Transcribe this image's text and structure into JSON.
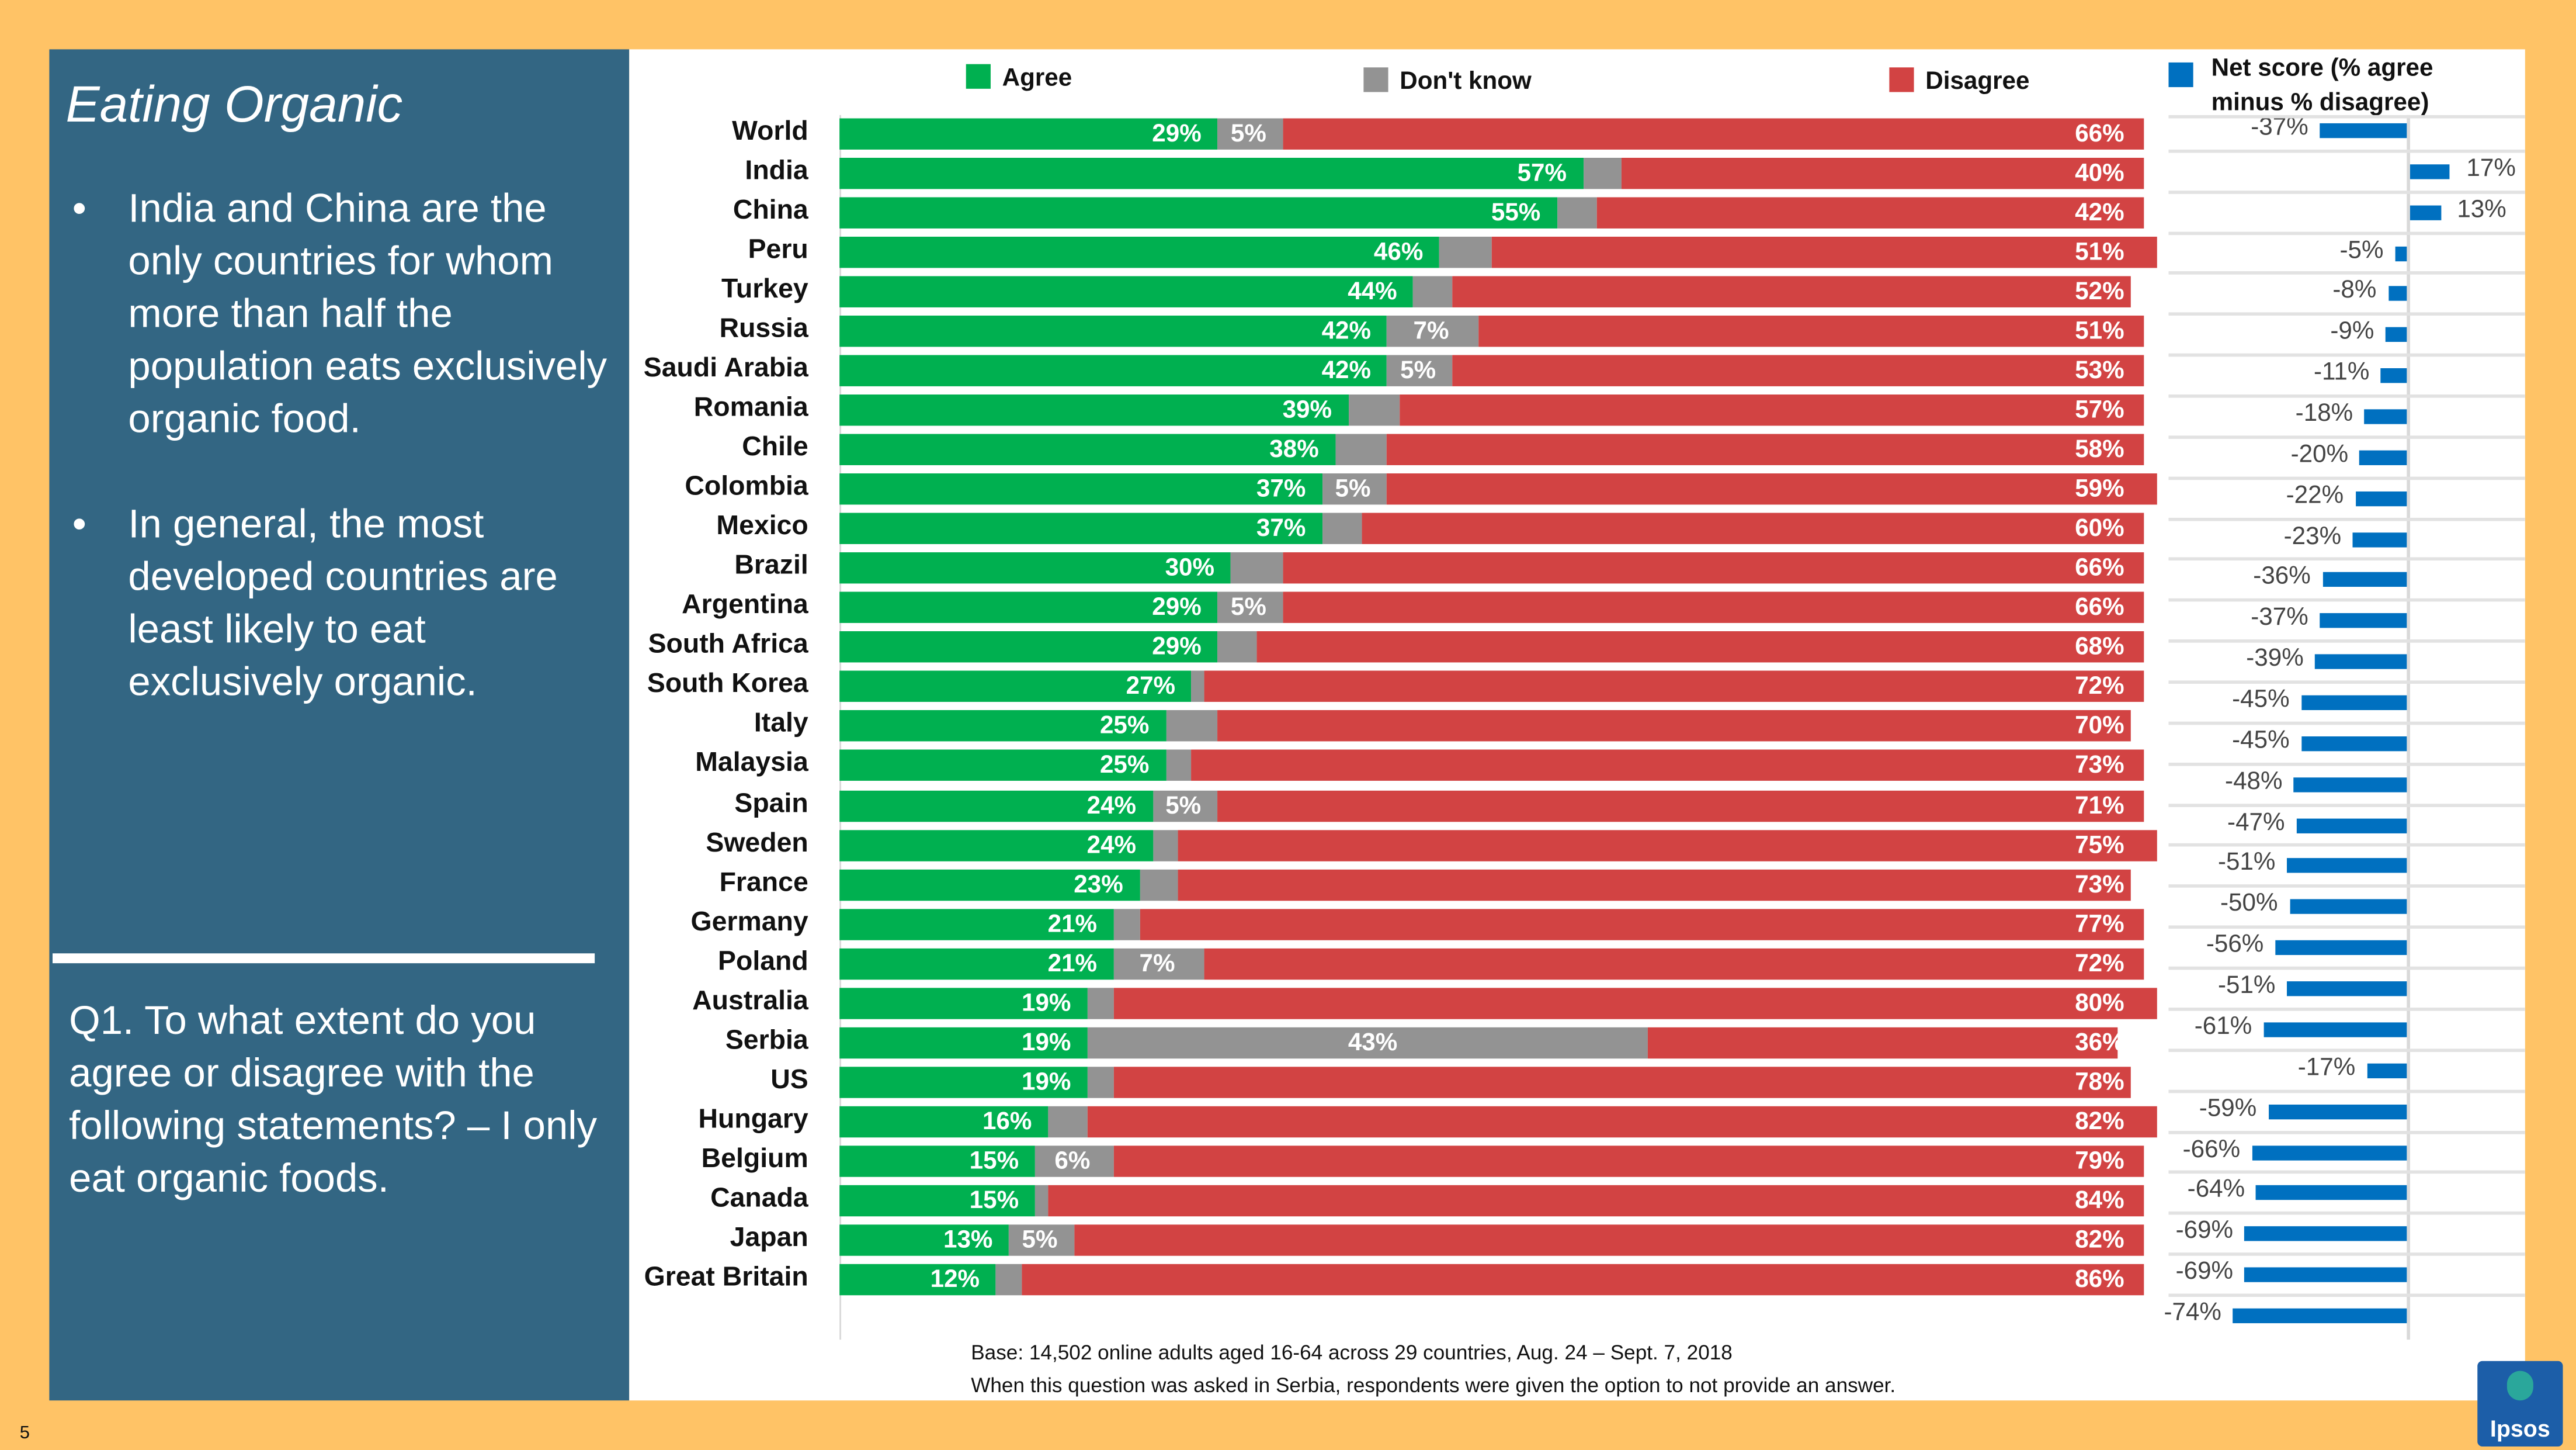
{
  "left_panel": {
    "title": "Eating Organic",
    "bullets": [
      "India and China are the only countries for whom more than half the population eats exclusively organic food.",
      "In general, the most developed countries are least likely to eat exclusively organic."
    ],
    "question": "Q1. To what extent do you agree or disagree with the following statements? – I only eat organic foods."
  },
  "chart_data": [
    {
      "type": "bar",
      "orientation": "horizontal-stacked",
      "legend": [
        "Agree",
        "Don't know",
        "Disagree"
      ],
      "legend_placement": "top",
      "colors": {
        "agree": "#00B050",
        "dont_know": "#939393",
        "disagree": "#D24343"
      },
      "xlim": [
        0,
        100
      ],
      "categories": [
        "World",
        "India",
        "China",
        "Peru",
        "Turkey",
        "Russia",
        "Saudi Arabia",
        "Romania",
        "Chile",
        "Colombia",
        "Mexico",
        "Brazil",
        "Argentina",
        "South Africa",
        "South Korea",
        "Italy",
        "Malaysia",
        "Spain",
        "Sweden",
        "France",
        "Germany",
        "Poland",
        "Australia",
        "Serbia",
        "US",
        "Hungary",
        "Belgium",
        "Canada",
        "Japan",
        "Great Britain"
      ],
      "series": [
        {
          "name": "Agree",
          "values": [
            29,
            57,
            55,
            46,
            44,
            42,
            42,
            39,
            38,
            37,
            37,
            30,
            29,
            29,
            27,
            25,
            25,
            24,
            24,
            23,
            21,
            21,
            19,
            19,
            19,
            16,
            15,
            15,
            13,
            12
          ]
        },
        {
          "name": "Don't know",
          "values": [
            5,
            3,
            3,
            4,
            3,
            7,
            5,
            4,
            4,
            5,
            3,
            4,
            5,
            3,
            1,
            4,
            2,
            5,
            2,
            3,
            2,
            7,
            2,
            43,
            2,
            3,
            6,
            1,
            5,
            2
          ],
          "labels": [
            "5%",
            "",
            "",
            "",
            "",
            "7%",
            "5%",
            "",
            "",
            "5%",
            "",
            "",
            "5%",
            "",
            "",
            "",
            "",
            "5%",
            "",
            "",
            "",
            "7%",
            "",
            "43%",
            "",
            "",
            "6%",
            "",
            "5%",
            ""
          ]
        },
        {
          "name": "Disagree",
          "values": [
            66,
            40,
            42,
            51,
            52,
            51,
            53,
            57,
            58,
            59,
            60,
            66,
            66,
            68,
            72,
            70,
            73,
            71,
            75,
            73,
            77,
            72,
            80,
            36,
            78,
            82,
            79,
            84,
            82,
            86
          ]
        }
      ]
    },
    {
      "type": "bar",
      "orientation": "horizontal",
      "legend": [
        "Net score (% agree minus % disagree)"
      ],
      "color": "#0070C0",
      "values": [
        -37,
        17,
        13,
        -5,
        -8,
        -9,
        -11,
        -18,
        -20,
        -22,
        -23,
        -36,
        -37,
        -39,
        -45,
        -45,
        -48,
        -47,
        -51,
        -50,
        -56,
        -51,
        -61,
        -17,
        -59,
        -66,
        -64,
        -69,
        -69,
        -74
      ]
    }
  ],
  "footer": {
    "base": "Base: 14,502 online adults aged 16-64 across 29 countries, Aug. 24 – Sept. 7, 2018",
    "note": "When this question was asked in Serbia, respondents were given the option to not provide an answer."
  },
  "logo": "Ipsos",
  "page_number": "5"
}
